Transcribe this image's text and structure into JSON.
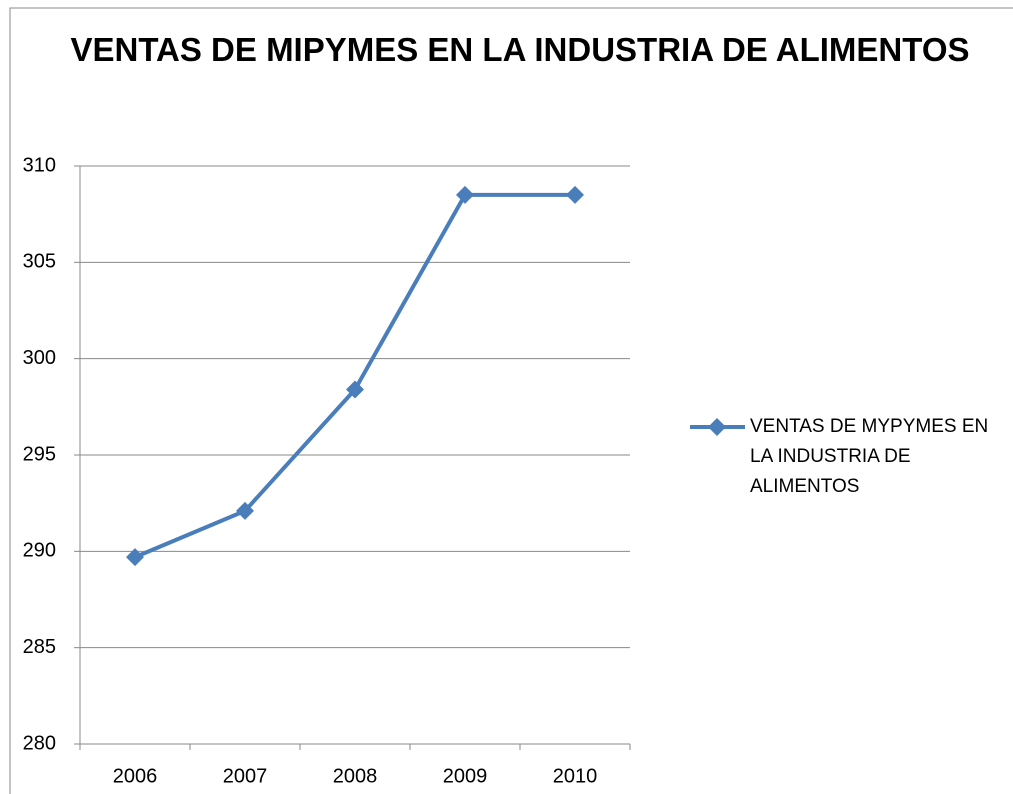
{
  "chart_data": {
    "type": "line",
    "title": "VENTAS DE MIPYMES EN LA INDUSTRIA DE ALIMENTOS",
    "categories": [
      "2006",
      "2007",
      "2008",
      "2009",
      "2010"
    ],
    "series": [
      {
        "name": "VENTAS DE MYPYMES EN LA INDUSTRIA DE ALIMENTOS",
        "color": "#4a7ebb",
        "values": [
          289.7,
          292.1,
          298.4,
          308.5,
          308.5
        ]
      }
    ],
    "ylim": [
      280,
      310
    ],
    "yticks": [
      280,
      285,
      290,
      295,
      300,
      305,
      310
    ],
    "grid": true,
    "legend": "right"
  }
}
